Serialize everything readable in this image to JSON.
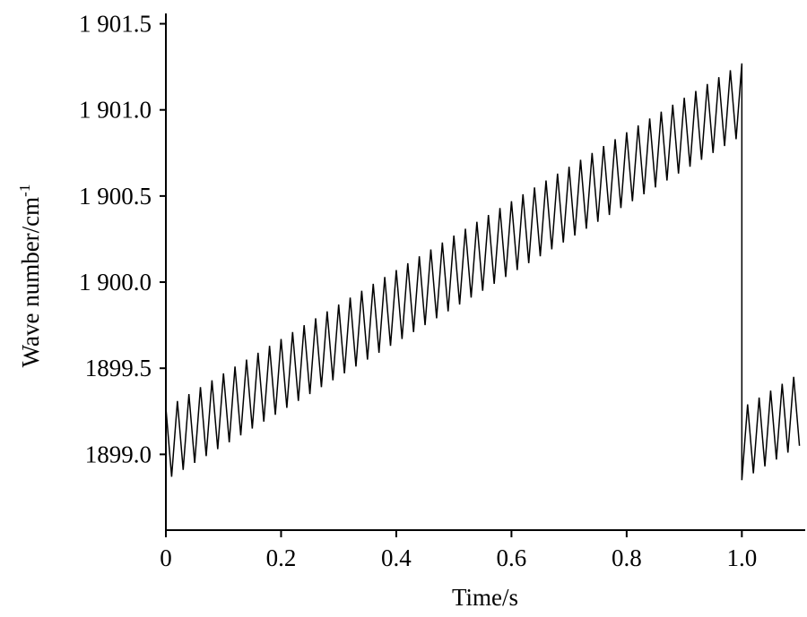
{
  "chart_data": {
    "type": "line",
    "xlabel": "Time/s",
    "ylabel": "Wave number/cm",
    "ylabel_sup": "-1",
    "color": "#000000",
    "xlim": [
      0,
      1.11
    ],
    "ylim": [
      1898.56,
      1901.56
    ],
    "xticks": [
      0,
      0.2,
      0.4,
      0.6,
      0.8,
      {
        "value": 1.0,
        "label": "1.0"
      }
    ],
    "yticks": [
      {
        "value": 1899.0,
        "label": "1899.0"
      },
      {
        "value": 1899.5,
        "label": "1899.5"
      },
      {
        "value": 1900.0,
        "label": "1 900.0"
      },
      {
        "value": 1900.5,
        "label": "1 900.5"
      },
      {
        "value": 1901.0,
        "label": "1 901.0"
      },
      {
        "value": 1901.5,
        "label": "1 901.5"
      }
    ],
    "x": [
      0,
      0.01,
      0.02,
      0.03,
      0.04,
      0.05,
      0.06,
      0.07,
      0.08,
      0.09,
      0.1,
      0.11,
      0.12,
      0.13,
      0.14,
      0.15,
      0.16,
      0.17,
      0.18,
      0.19,
      0.2,
      0.21,
      0.22,
      0.23,
      0.24,
      0.25,
      0.26,
      0.27,
      0.28,
      0.29,
      0.3,
      0.31,
      0.32,
      0.33,
      0.34,
      0.35,
      0.36,
      0.37,
      0.38,
      0.39,
      0.4,
      0.41,
      0.42,
      0.43,
      0.44,
      0.45,
      0.46,
      0.47,
      0.48,
      0.49,
      0.5,
      0.51,
      0.52,
      0.53,
      0.54,
      0.55,
      0.56,
      0.57,
      0.58,
      0.59,
      0.6,
      0.61,
      0.62,
      0.63,
      0.64,
      0.65,
      0.66,
      0.67,
      0.68,
      0.69,
      0.7,
      0.71,
      0.72,
      0.73,
      0.74,
      0.75,
      0.76,
      0.77,
      0.78,
      0.79,
      0.8,
      0.81,
      0.82,
      0.83,
      0.84,
      0.85,
      0.86,
      0.87,
      0.88,
      0.89,
      0.9,
      0.91,
      0.92,
      0.93,
      0.94,
      0.95,
      0.96,
      0.97,
      0.98,
      0.99,
      1.0,
      1.0,
      1.01,
      1.02,
      1.03,
      1.04,
      1.05,
      1.06,
      1.07,
      1.08,
      1.09,
      1.1
    ],
    "values": [
      1899.27,
      1898.87,
      1899.31,
      1898.91,
      1899.35,
      1898.95,
      1899.39,
      1898.99,
      1899.43,
      1899.03,
      1899.47,
      1899.07,
      1899.51,
      1899.11,
      1899.55,
      1899.15,
      1899.59,
      1899.19,
      1899.63,
      1899.23,
      1899.67,
      1899.27,
      1899.71,
      1899.31,
      1899.75,
      1899.35,
      1899.79,
      1899.39,
      1899.83,
      1899.43,
      1899.87,
      1899.47,
      1899.91,
      1899.51,
      1899.95,
      1899.55,
      1899.99,
      1899.59,
      1900.03,
      1899.63,
      1900.07,
      1899.67,
      1900.11,
      1899.71,
      1900.15,
      1899.75,
      1900.19,
      1899.79,
      1900.23,
      1899.83,
      1900.27,
      1899.87,
      1900.31,
      1899.91,
      1900.35,
      1899.95,
      1900.39,
      1899.99,
      1900.43,
      1900.03,
      1900.47,
      1900.07,
      1900.51,
      1900.11,
      1900.55,
      1900.15,
      1900.59,
      1900.19,
      1900.63,
      1900.23,
      1900.67,
      1900.27,
      1900.71,
      1900.31,
      1900.75,
      1900.35,
      1900.79,
      1900.39,
      1900.83,
      1900.43,
      1900.87,
      1900.47,
      1900.91,
      1900.51,
      1900.95,
      1900.55,
      1900.99,
      1900.59,
      1901.03,
      1900.63,
      1901.07,
      1900.67,
      1901.11,
      1900.71,
      1901.15,
      1900.75,
      1901.19,
      1900.79,
      1901.23,
      1900.83,
      1901.27,
      1898.85,
      1899.29,
      1898.89,
      1899.33,
      1898.93,
      1899.37,
      1898.97,
      1899.41,
      1899.01,
      1899.45,
      1899.05
    ]
  }
}
